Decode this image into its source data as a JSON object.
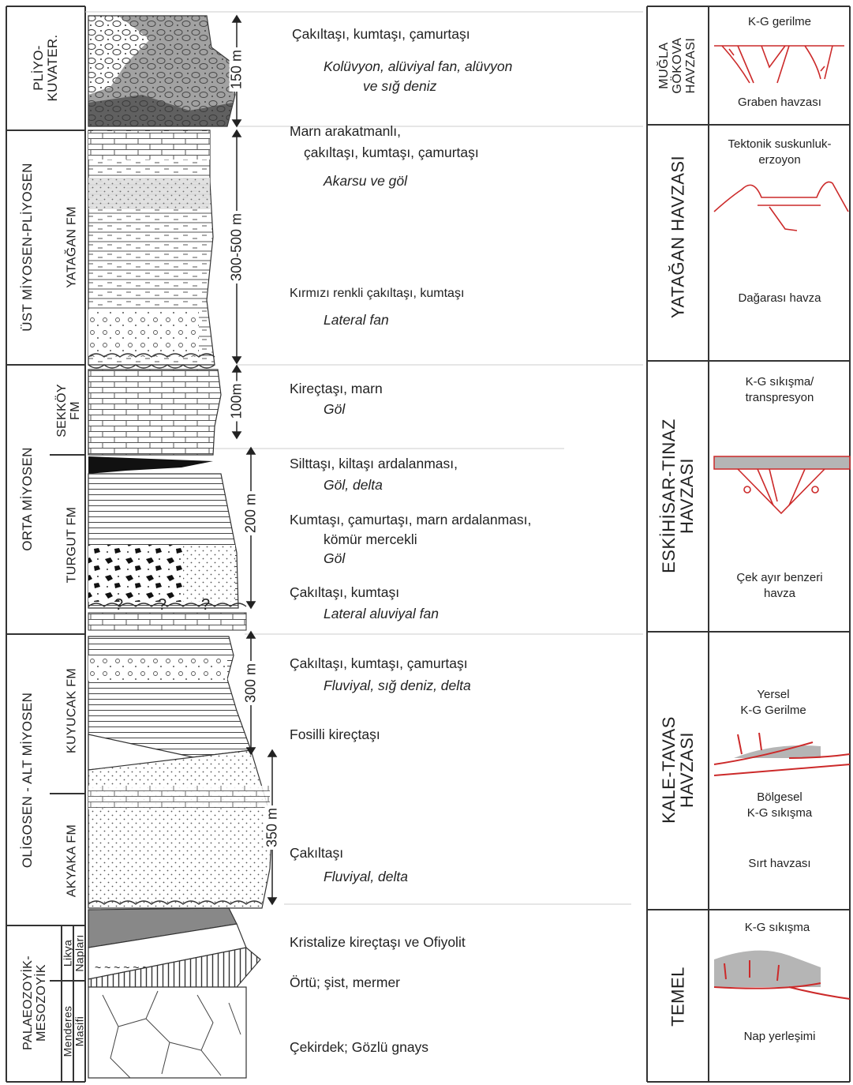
{
  "ages": {
    "pliyo": [
      "PLİYO-",
      "KUVATER."
    ],
    "ust": "ÜST MİYOSEN-PLİYOSEN",
    "orta": "ORTA  MİYOSEN",
    "oligo": "OLİGOSEN - ALT MİYOSEN",
    "paleo": [
      "PALAEOZOYİK-",
      "MESOZOYİK"
    ]
  },
  "formations": {
    "yatagan": "YATAĞAN FM",
    "sekkoy": [
      "SEKKÖY",
      "FM"
    ],
    "turgut": "TURGUT  FM",
    "kuyucak": "KUYUCAK  FM",
    "akyaka": "AKYAKA FM",
    "likya": [
      "Likya",
      "Napları"
    ],
    "menderes": [
      "Menderes",
      "Masifi"
    ]
  },
  "thickness": {
    "t150": "150 m",
    "t300500": "300-500 m",
    "t100": "100m",
    "t200": "200 m",
    "t300": "300 m",
    "t350": "350 m"
  },
  "descriptions": {
    "d1": "Çakıltaşı, kumtaşı, çamurtaşı",
    "d1i_a": "Kolüvyon, alüviyal fan, alüvyon",
    "d1i_b": "ve sığ deniz",
    "d2a": "Marn arakatmanlı,",
    "d2b": "çakıltaşı, kumtaşı, çamurtaşı",
    "d2i": "Akarsu ve göl",
    "d3": "Kırmızı renkli çakıltaşı, kumtaşı",
    "d3i": "Lateral fan",
    "d4": "Kireçtaşı, marn",
    "d4i": "Göl",
    "d5": "Silttaşı, kiltaşı ardalanması,",
    "d5i": "Göl, delta",
    "d6a": "Kumtaşı, çamurtaşı, marn ardalanması,",
    "d6b": "kömür mercekli",
    "d6i": "Göl",
    "d7": "Çakıltaşı, kumtaşı",
    "d7i": "Lateral aluviyal fan",
    "d8": "Çakıltaşı, kumtaşı, çamurtaşı",
    "d8i": "Fluviyal, sığ deniz, delta",
    "d9": "Fosilli kireçtaşı",
    "d10": "Çakıltaşı",
    "d10i": "Fluviyal, delta",
    "d11": "Kristalize kireçtaşı ve Ofiyolit",
    "d12": "Örtü; şist, mermer",
    "d13": "Çekirdek; Gözlü gnays"
  },
  "basins": {
    "mugla": [
      "MUĞLA",
      "GÖKOVA",
      "HAVZASI"
    ],
    "yatagan": "YATAĞAN HAVZASI",
    "eskihisar": [
      "ESKİHİSAR-TINAZ",
      "HAVZASI"
    ],
    "kale": [
      "KALE-TAVAS",
      "HAVZASI"
    ],
    "temel": "TEMEL"
  },
  "tectonics": {
    "mugla_top": "K-G gerilme",
    "mugla_bottom": "Graben havzası",
    "yatagan_top": [
      "Tektonik suskunluk-",
      "erzoyon"
    ],
    "yatagan_bottom": "Dağarası havza",
    "eski_top": [
      "K-G sıkışma/",
      "transpresyon"
    ],
    "eski_bottom": [
      "Çek ayır benzeri",
      "havza"
    ],
    "kale_top": [
      "Yersel",
      "K-G Gerilme"
    ],
    "kale_mid": [
      "Bölgesel",
      "K-G sıkışma"
    ],
    "kale_bottom": "Sırt havzası",
    "temel_top": "K-G sıkışma",
    "temel_bottom": "Nap yerleşimi"
  },
  "colors": {
    "line": "#222222",
    "fault_red": "#cc2a2a",
    "basin_gray": "#b5b5b5"
  }
}
